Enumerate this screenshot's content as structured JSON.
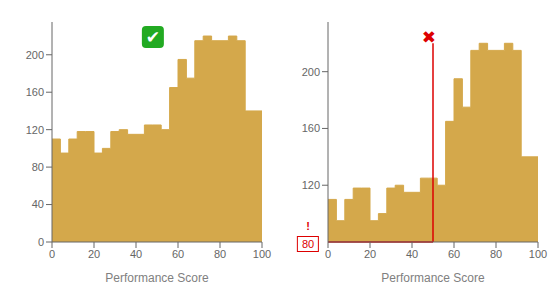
{
  "chart_data": [
    {
      "type": "bar",
      "bins": [
        0,
        4,
        8,
        12,
        16,
        20,
        24,
        28,
        32,
        36,
        40,
        44,
        48,
        52,
        56,
        60,
        64,
        68,
        72,
        76,
        80,
        84,
        88,
        92,
        100
      ],
      "values": [
        110,
        95,
        110,
        118,
        118,
        95,
        100,
        118,
        120,
        115,
        115,
        125,
        125,
        120,
        165,
        195,
        175,
        215,
        220,
        215,
        215,
        220,
        215,
        140
      ],
      "color": "#D4A84B",
      "xlabel": "Performance Score",
      "xlim": [
        0,
        100
      ],
      "xticks": [
        0,
        20,
        40,
        60,
        80,
        100
      ],
      "ylim": [
        0,
        235
      ],
      "yticks": [
        0,
        40,
        80,
        120,
        160,
        200
      ],
      "annotations": [
        {
          "text": "✔",
          "color": "#FFFFFF",
          "background": "#22AA22",
          "position": "top"
        }
      ]
    },
    {
      "type": "bar",
      "bins": [
        0,
        4,
        8,
        12,
        16,
        20,
        24,
        28,
        32,
        36,
        40,
        44,
        48,
        52,
        56,
        60,
        64,
        68,
        72,
        76,
        80,
        84,
        88,
        92,
        100
      ],
      "values": [
        110,
        95,
        110,
        118,
        118,
        95,
        100,
        118,
        120,
        115,
        115,
        125,
        125,
        120,
        165,
        195,
        175,
        215,
        220,
        215,
        215,
        220,
        215,
        140
      ],
      "color": "#D4A84B",
      "xlabel": "Performance Score",
      "xlim": [
        0,
        100
      ],
      "xticks": [
        0,
        20,
        40,
        60,
        80,
        100
      ],
      "ylim": [
        80,
        235
      ],
      "yticks": [
        120,
        160,
        200
      ],
      "lines": [
        {
          "x": [
            0,
            50
          ],
          "y": [
            80,
            80
          ],
          "color": "#DD0000"
        },
        {
          "x": [
            50,
            50
          ],
          "y": [
            80,
            220
          ],
          "color": "#DD0000"
        }
      ],
      "annotations": [
        {
          "text": "✖",
          "color": "#DD0000",
          "position": "top"
        },
        {
          "text": "!",
          "color": "#DD0000",
          "position": "origin"
        },
        {
          "text": "80",
          "color": "#DD0000",
          "position": "origin",
          "border": true
        }
      ]
    }
  ]
}
